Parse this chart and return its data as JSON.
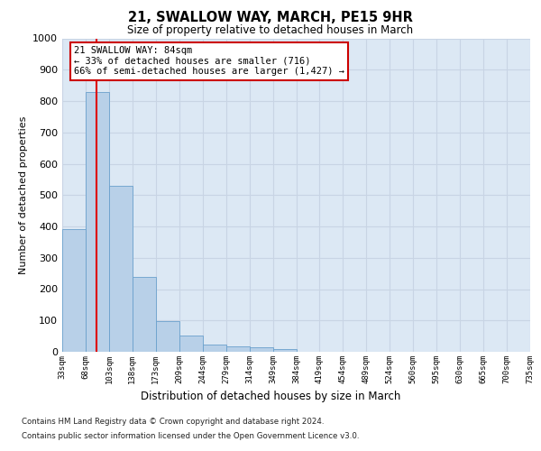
{
  "title": "21, SWALLOW WAY, MARCH, PE15 9HR",
  "subtitle": "Size of property relative to detached houses in March",
  "xlabel": "Distribution of detached houses by size in March",
  "ylabel": "Number of detached properties",
  "bar_values": [
    390,
    830,
    530,
    240,
    97,
    52,
    22,
    17,
    15,
    10,
    0,
    0,
    0,
    0,
    0,
    0,
    0,
    0,
    0,
    0
  ],
  "x_labels": [
    "33sqm",
    "68sqm",
    "103sqm",
    "138sqm",
    "173sqm",
    "209sqm",
    "244sqm",
    "279sqm",
    "314sqm",
    "349sqm",
    "384sqm",
    "419sqm",
    "454sqm",
    "489sqm",
    "524sqm",
    "560sqm",
    "595sqm",
    "630sqm",
    "665sqm",
    "700sqm",
    "735sqm"
  ],
  "bar_color": "#b8d0e8",
  "bar_edge_color": "#6aa0cc",
  "grid_color": "#c8d4e4",
  "plot_bg_color": "#dce8f4",
  "vline_x": 1.48,
  "vline_color": "#dd0000",
  "annotation_text": "21 SWALLOW WAY: 84sqm\n← 33% of detached houses are smaller (716)\n66% of semi-detached houses are larger (1,427) →",
  "annotation_box_color": "#ffffff",
  "annotation_box_edge": "#cc0000",
  "ylim": [
    0,
    1000
  ],
  "yticks": [
    0,
    100,
    200,
    300,
    400,
    500,
    600,
    700,
    800,
    900,
    1000
  ],
  "footnote1": "Contains HM Land Registry data © Crown copyright and database right 2024.",
  "footnote2": "Contains public sector information licensed under the Open Government Licence v3.0."
}
